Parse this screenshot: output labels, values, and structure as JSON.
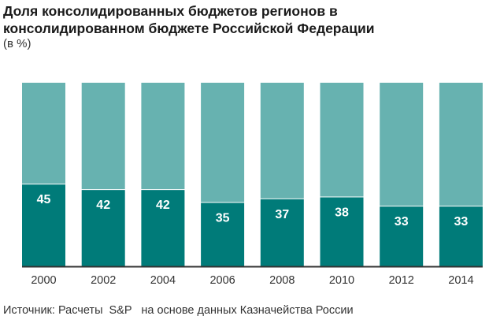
{
  "chart_data": {
    "type": "bar",
    "stacked": true,
    "title_line1": "Доля консолидированных бюджетов регионов в",
    "title_line2": "консолидированном бюджете Российской Федерации",
    "subtitle": "(в %)",
    "categories": [
      "2000",
      "2002",
      "2004",
      "2006",
      "2008",
      "2010",
      "2012",
      "2014"
    ],
    "values": [
      45,
      42,
      42,
      35,
      37,
      38,
      33,
      33
    ],
    "ylim": [
      0,
      100
    ],
    "xlabel": "",
    "ylabel": "",
    "grid": false,
    "colors": {
      "share": "#007b79",
      "remainder": "#67b2b0",
      "axis": "#333333",
      "label": "#ffffff"
    },
    "source": "Источник: Расчеты  S&P   на основе данных Казначейства России"
  }
}
